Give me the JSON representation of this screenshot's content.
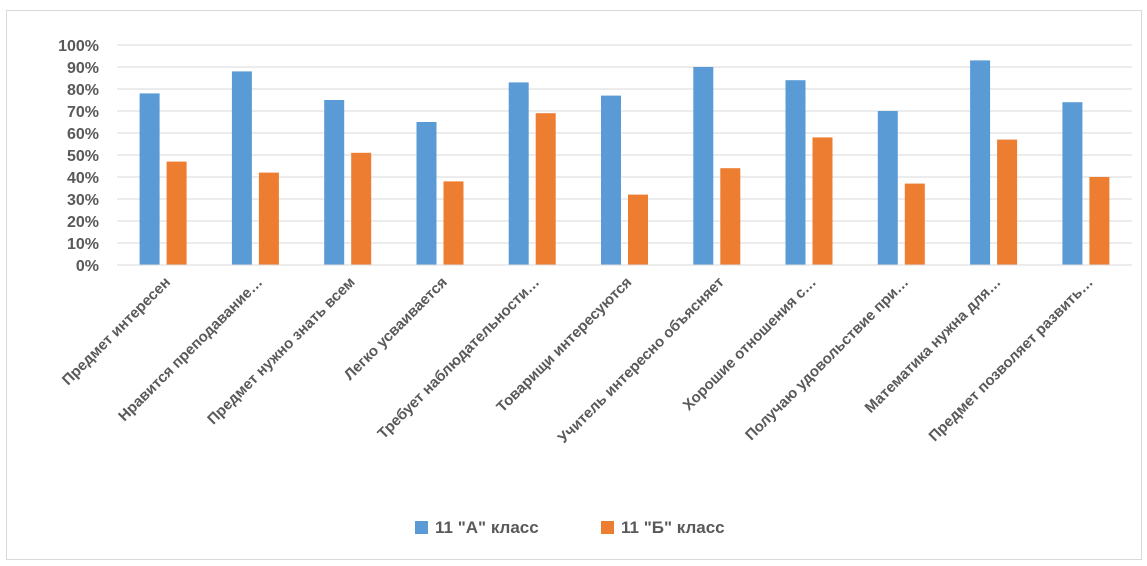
{
  "chart_data": {
    "type": "bar",
    "title": "",
    "xlabel": "",
    "ylabel": "",
    "ylim": [
      0,
      100
    ],
    "y_ticks": [
      "0%",
      "10%",
      "20%",
      "30%",
      "40%",
      "50%",
      "60%",
      "70%",
      "80%",
      "90%",
      "100%"
    ],
    "grid": true,
    "legend_position": "bottom",
    "categories": [
      "Предмет интересен",
      "Нравится преподавание…",
      "Предмет нужно знать всем",
      "Легко усваивается",
      "Требует наблюдательности…",
      "Товарищи интересуются",
      "Учитель интересно объясняет",
      "Хорошие отношения с…",
      "Получаю удовольствие при…",
      "Математика нужна для…",
      "Предмет позволяет развить…"
    ],
    "series": [
      {
        "name": "11 \"А\" класс",
        "color": "#5B9BD5",
        "values": [
          78,
          88,
          75,
          65,
          83,
          77,
          90,
          84,
          70,
          93,
          74
        ]
      },
      {
        "name": "11 \"Б\" класс",
        "color": "#ED7D31",
        "values": [
          47,
          42,
          51,
          38,
          69,
          32,
          44,
          58,
          37,
          57,
          40
        ]
      }
    ]
  }
}
